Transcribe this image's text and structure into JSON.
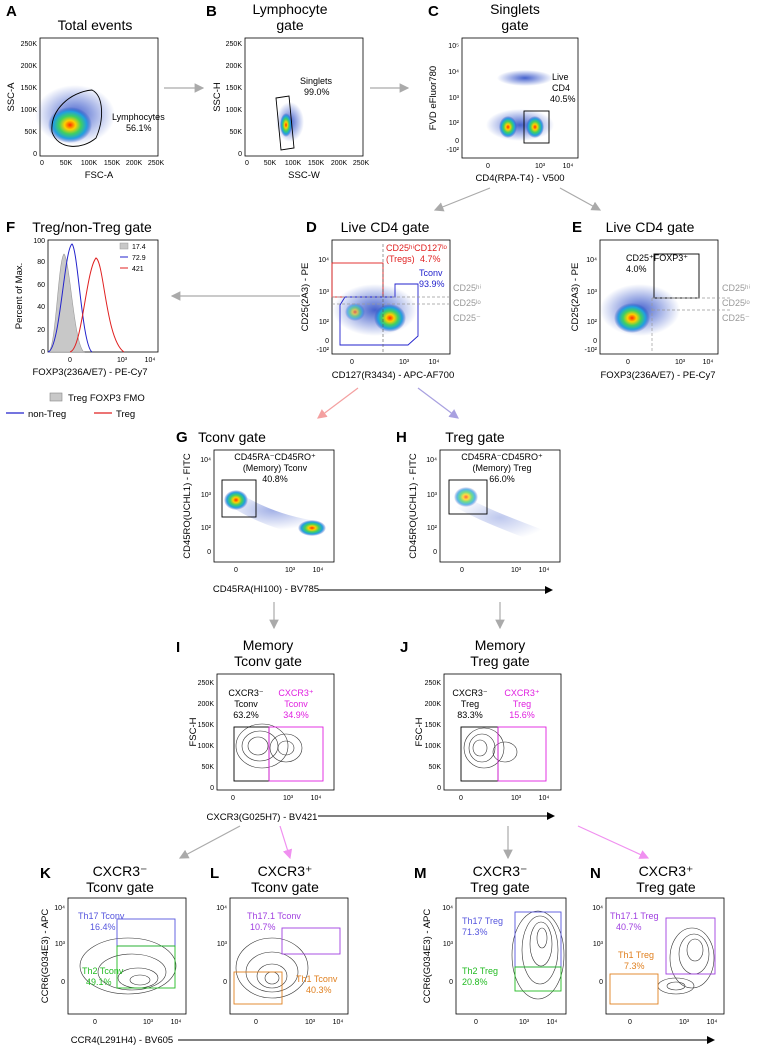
{
  "panels": {
    "A": {
      "letter": "A",
      "title": "Total events",
      "xlabel": "FSC-A",
      "ylabel": "SSC-A",
      "xticks": [
        "0",
        "50K",
        "100K",
        "150K",
        "200K",
        "250K"
      ],
      "yticks": [
        "0",
        "50K",
        "100K",
        "150K",
        "200K",
        "250K"
      ],
      "gates": [
        {
          "label": "Lymphocytes",
          "pct": "56.1%"
        }
      ]
    },
    "B": {
      "letter": "B",
      "title": [
        "Lymphocyte",
        "gate"
      ],
      "xlabel": "SSC-W",
      "ylabel": "SSC-H",
      "xticks": [
        "0",
        "50K",
        "100K",
        "150K",
        "200K",
        "250K"
      ],
      "yticks": [
        "0",
        "50K",
        "100K",
        "150K",
        "200K",
        "250K"
      ],
      "gates": [
        {
          "label": "Singlets",
          "pct": "99.0%"
        }
      ]
    },
    "C": {
      "letter": "C",
      "title": [
        "Singlets",
        "gate"
      ],
      "xlabel": "CD4(RPA-T4) - V500",
      "ylabel": "FVD eFluor780",
      "xticks": [
        "0",
        "10³",
        "10⁴"
      ],
      "yticks": [
        "-10²",
        "0",
        "10²",
        "10³",
        "10⁴",
        "10⁵"
      ],
      "gates": [
        {
          "label": "Live",
          "label2": "CD4",
          "pct": "40.5%"
        }
      ]
    },
    "D": {
      "letter": "D",
      "title": "Live CD4 gate",
      "xlabel": "CD127(R3434) - APC-AF700",
      "ylabel": "CD25(2A3) - PE",
      "xticks": [
        "0",
        "10³",
        "10⁴"
      ],
      "yticks": [
        "-10²",
        "0",
        "10²",
        "10³",
        "10⁴"
      ],
      "gates": [
        {
          "label": "CD25ʰⁱCD127ˡᵒ",
          "label2": "(Tregs)",
          "pct": "4.7%"
        },
        {
          "label": "Tconv",
          "pct": "93.9%"
        }
      ],
      "side_labels": [
        "CD25ʰⁱ",
        "CD25ˡᵒ",
        "CD25⁻"
      ]
    },
    "E": {
      "letter": "E",
      "title": "Live CD4 gate",
      "xlabel": "FOXP3(236A/E7) - PE-Cy7",
      "ylabel": "CD25(2A3) - PE",
      "xticks": [
        "0",
        "10³",
        "10⁴"
      ],
      "yticks": [
        "-10²",
        "0",
        "10²",
        "10³",
        "10⁴"
      ],
      "gates": [
        {
          "label": "CD25⁺FOXP3⁺",
          "pct": "4.0%"
        }
      ],
      "side_labels": [
        "CD25ʰⁱ",
        "CD25ˡᵒ",
        "CD25⁻"
      ]
    },
    "F": {
      "letter": "F",
      "title": "Treg/non-Treg gate",
      "xlabel": "FOXP3(236A/E7) - PE-Cy7",
      "ylabel": "Percent of Max.",
      "xticks": [
        "0",
        "10³",
        "10⁴"
      ],
      "yticks": [
        "0",
        "20",
        "40",
        "60",
        "80",
        "100"
      ],
      "legend_mfi": [
        {
          "value": "17.4",
          "color": "#aaaaaa"
        },
        {
          "value": "72.9",
          "color": "#2222cc"
        },
        {
          "value": "421",
          "color": "#e02020"
        }
      ],
      "legend": [
        {
          "label": "Treg FOXP3 FMO"
        },
        {
          "label": "non-Treg"
        },
        {
          "label": "Treg"
        }
      ]
    },
    "G": {
      "letter": "G",
      "title": "Tconv gate",
      "xlabel": "CD45RA(HI100) - BV785",
      "ylabel": "CD45RO(UCHL1) - FITC",
      "xticks": [
        "0",
        "10³",
        "10⁴"
      ],
      "yticks": [
        "0",
        "10²",
        "10³",
        "10⁴"
      ],
      "gates": [
        {
          "label": "CD45RA⁻CD45RO⁺",
          "label2": "(Memory) Tconv",
          "pct": "40.8%"
        }
      ]
    },
    "H": {
      "letter": "H",
      "title": "Treg gate",
      "xlabel": "",
      "ylabel": "CD45RO(UCHL1) - FITC",
      "xticks": [
        "0",
        "10³",
        "10⁴"
      ],
      "yticks": [
        "0",
        "10²",
        "10³",
        "10⁴"
      ],
      "gates": [
        {
          "label": "CD45RA⁻CD45RO⁺",
          "label2": "(Memory) Treg",
          "pct": "66.0%"
        }
      ]
    },
    "I": {
      "letter": "I",
      "title": [
        "Memory",
        "Tconv gate"
      ],
      "xlabel": "CXCR3(G025H7) - BV421",
      "ylabel": "FSC-H",
      "xticks": [
        "0",
        "10³",
        "10⁴"
      ],
      "yticks": [
        "0",
        "50K",
        "100K",
        "150K",
        "200K",
        "250K"
      ],
      "gates": [
        {
          "label": "CXCR3⁻",
          "label2": "Tconv",
          "pct": "63.2%"
        },
        {
          "label": "CXCR3⁺",
          "label2": "Tconv",
          "pct": "34.9%"
        }
      ]
    },
    "J": {
      "letter": "J",
      "title": [
        "Memory",
        "Treg gate"
      ],
      "xlabel": "",
      "ylabel": "FSC-H",
      "xticks": [
        "0",
        "10³",
        "10⁴"
      ],
      "yticks": [
        "0",
        "50K",
        "100K",
        "150K",
        "200K",
        "250K"
      ],
      "gates": [
        {
          "label": "CXCR3⁻",
          "label2": "Treg",
          "pct": "83.3%"
        },
        {
          "label": "CXCR3⁺",
          "label2": "Treg",
          "pct": "15.6%"
        }
      ]
    },
    "K": {
      "letter": "K",
      "title": [
        "CXCR3⁻",
        "Tconv gate"
      ],
      "xlabel": "CCR4(L291H4) - BV605",
      "ylabel": "CCR6(G034E3) - APC",
      "xticks": [
        "0",
        "10³",
        "10⁴"
      ],
      "yticks": [
        "0",
        "10³",
        "10⁴"
      ],
      "gates": [
        {
          "label": "Th17 Tconv",
          "pct": "16.4%"
        },
        {
          "label": "Th2 Tconv",
          "pct": "49.1%"
        }
      ]
    },
    "L": {
      "letter": "L",
      "title": [
        "CXCR3⁺",
        "Tconv gate"
      ],
      "xlabel": "",
      "ylabel": "",
      "xticks": [
        "0",
        "10³",
        "10⁴"
      ],
      "yticks": [
        "0",
        "10³",
        "10⁴"
      ],
      "gates": [
        {
          "label": "Th17.1 Tconv",
          "pct": "10.7%"
        },
        {
          "label": "Th1 Tconv",
          "pct": "40.3%"
        }
      ]
    },
    "M": {
      "letter": "M",
      "title": [
        "CXCR3⁻",
        "Treg gate"
      ],
      "xlabel": "",
      "ylabel": "CCR6(G034E3) - APC",
      "xticks": [
        "0",
        "10³",
        "10⁴"
      ],
      "yticks": [
        "0",
        "10³",
        "10⁴"
      ],
      "gates": [
        {
          "label": "Th17 Treg",
          "pct": "71.3%"
        },
        {
          "label": "Th2 Treg",
          "pct": "20.8%"
        }
      ]
    },
    "N": {
      "letter": "N",
      "title": [
        "CXCR3⁺",
        "Treg gate"
      ],
      "xlabel": "",
      "ylabel": "",
      "xticks": [
        "0",
        "10³",
        "10⁴"
      ],
      "yticks": [
        "0",
        "10³",
        "10⁴"
      ],
      "gates": [
        {
          "label": "Th17.1 Treg",
          "pct": "40.7%"
        },
        {
          "label": "Th1 Treg",
          "pct": "7.3%"
        }
      ]
    }
  },
  "colors": {
    "treg": "#e02020",
    "tconv": "#2222cc",
    "cxcr3pos": "#e020e0",
    "th17": "#5555dd",
    "th171": "#a040e0",
    "th2": "#22bb22",
    "th1": "#e08020",
    "grey_arrow": "#aaaaaa",
    "pink_arrow": "#f4a0a0",
    "lav_arrow": "#a8a0e0",
    "mag_arrow": "#f090f0"
  }
}
